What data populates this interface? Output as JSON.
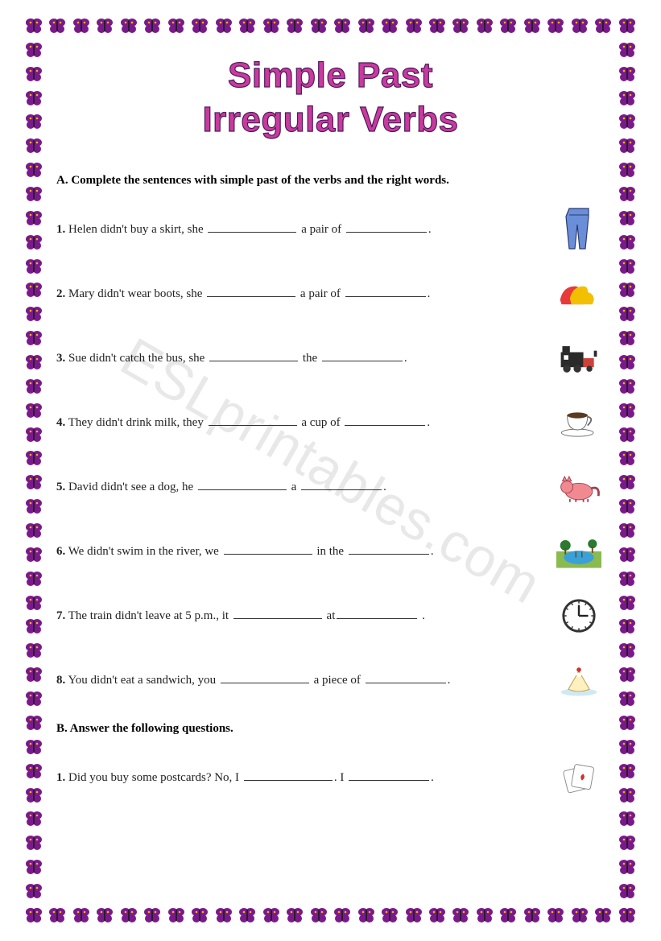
{
  "border": {
    "butterfly_color_wing": "#7a1a8a",
    "butterfly_color_accent": "#e8b020",
    "count_horizontal": 26,
    "count_vertical": 38
  },
  "title": {
    "line1": "Simple Past",
    "line2": "Irregular Verbs",
    "color": "#c93a9e",
    "stroke_color": "#4a1a5a",
    "font_size": 44
  },
  "watermark": "ESLprintables.com",
  "sectionA": {
    "label": "A. Complete the sentences with simple past of the verbs and the right words.",
    "items": [
      {
        "num": "1.",
        "pre": "Helen didn't buy a skirt, she ",
        "mid": " a pair of ",
        "post": ".",
        "icon": "jeans"
      },
      {
        "num": "2.",
        "pre": "Mary didn't wear boots, she ",
        "mid": " a pair of ",
        "post": ".",
        "icon": "shoes"
      },
      {
        "num": "3.",
        "pre": "Sue didn't catch the bus, she ",
        "mid": " the ",
        "post": ".",
        "icon": "train"
      },
      {
        "num": "4.",
        "pre": "They didn't drink milk, they ",
        "mid": " a cup of ",
        "post": ".",
        "icon": "coffee"
      },
      {
        "num": "5.",
        "pre": "David didn't see a dog, he ",
        "mid": " a ",
        "post": ".",
        "icon": "cat"
      },
      {
        "num": "6.",
        "pre": "We didn't swim in the river, we ",
        "mid": " in the ",
        "post": ".",
        "icon": "pool"
      },
      {
        "num": "7.",
        "pre": "The train didn't leave at 5 p.m., it ",
        "mid": " at",
        "post": " .",
        "icon": "clock"
      },
      {
        "num": "8.",
        "pre": "You didn't eat a sandwich, you ",
        "mid": " a piece of ",
        "post": ".",
        "icon": "cake"
      }
    ]
  },
  "sectionB": {
    "label": "B. Answer the following questions.",
    "items": [
      {
        "num": "1.",
        "pre": "Did you buy some postcards? No, I ",
        "mid": ". I ",
        "post": ".",
        "icon": "cards"
      }
    ]
  },
  "icons": {
    "jeans": {
      "type": "jeans",
      "fill": "#6a8fd8",
      "stroke": "#2a3a70"
    },
    "shoes": {
      "type": "shoes",
      "fill": "#e83a3a",
      "accent": "#f2c000"
    },
    "train": {
      "type": "train",
      "fill": "#2a2a2a",
      "accent": "#d0403a"
    },
    "coffee": {
      "type": "coffee",
      "cup": "#ffffff",
      "liquid": "#5a3a20",
      "saucer": "#ffffff",
      "stroke": "#666"
    },
    "cat": {
      "type": "cat",
      "fill": "#f08a90",
      "stroke": "#a04050"
    },
    "pool": {
      "type": "pool",
      "water": "#3aa0d8",
      "land": "#8aba50",
      "tree": "#2a7a30"
    },
    "clock": {
      "type": "clock",
      "face": "#ffffff",
      "rim": "#333",
      "hands": "#222"
    },
    "cake": {
      "type": "cake",
      "body": "#fff0c0",
      "icing": "#ffffff",
      "cherry": "#d03030",
      "plate": "#cfe8f5"
    },
    "cards": {
      "type": "cards",
      "card": "#ffffff",
      "stroke": "#888",
      "heart": "#d03030"
    }
  }
}
